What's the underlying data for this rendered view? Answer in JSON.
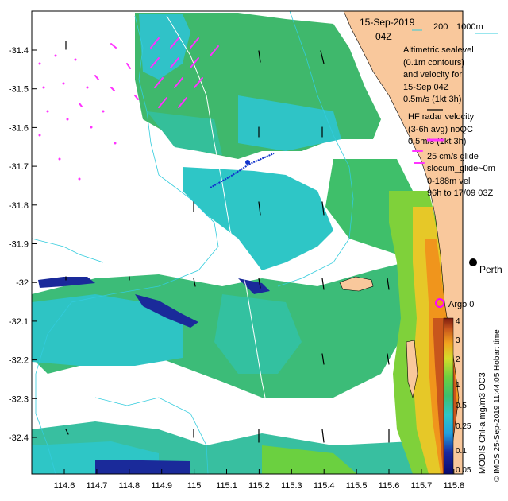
{
  "header": {
    "date": "15-Sep-2019",
    "time": "04Z",
    "bathy_legend_200": "200",
    "bathy_legend_1000": "1000m"
  },
  "legend": {
    "altimetry": [
      "Altimetric sealevel",
      "(0.1m contours)",
      "and velocity for",
      "15-Sep 04Z",
      "0.5m/s (1kt 3h)"
    ],
    "hf_radar": [
      "HF radar velocity",
      "(3-6h avg) noQC",
      "0.5m/s (1kt 3h)"
    ],
    "glider": [
      "25 cm/s glide",
      "slocum_glide~0m",
      "0-188m vel",
      "96h to 17/09 03Z"
    ],
    "argo": "Argo 0",
    "city": "Perth",
    "timestamp": "Hobart time",
    "credit": "© IMOS 25-Sep-2019 11:44:05 Hobart time"
  },
  "colorbar": {
    "label": "MODIS Chl-a mg/m3 OC3",
    "ticks": [
      "4",
      "3",
      "2",
      "1",
      "0.5",
      "0.25",
      "0.1",
      "0.05"
    ]
  },
  "axes": {
    "y_ticks": [
      "-31.4",
      "-31.5",
      "-31.6",
      "-31.7",
      "-31.8",
      "-31.9",
      "-32",
      "-32.1",
      "-32.2",
      "-32.3",
      "-32.4"
    ],
    "x_ticks": [
      "114.6",
      "114.7",
      "114.8",
      "114.9",
      "115",
      "115.1",
      "115.2",
      "115.3",
      "115.4",
      "115.5",
      "115.6",
      "115.7",
      "115.8"
    ]
  },
  "colors": {
    "land": "#f9c89c",
    "hf_arrow": "#ff33ff",
    "bathy_contour": "#33ccdd",
    "glider": "#1133cc",
    "argo": "#ff00ff"
  }
}
